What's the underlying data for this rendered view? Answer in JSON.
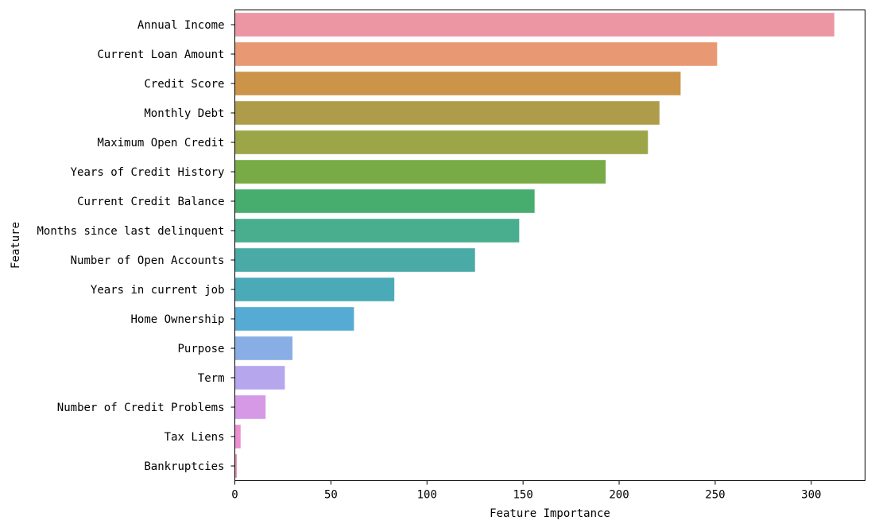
{
  "chart_data": {
    "type": "bar",
    "orientation": "horizontal",
    "xlabel": "Feature Importance",
    "ylabel": "Feature",
    "xlim": [
      0,
      328
    ],
    "xticks": [
      0,
      50,
      100,
      150,
      200,
      250,
      300
    ],
    "grid": false,
    "categories": [
      "Annual Income",
      "Current Loan Amount",
      "Credit Score",
      "Monthly Debt",
      "Maximum Open Credit",
      "Years of Credit History",
      "Current Credit Balance",
      "Months since last delinquent",
      "Number of Open Accounts",
      "Years in current job",
      "Home Ownership",
      "Purpose",
      "Term",
      "Number of Credit Problems",
      "Tax Liens",
      "Bankruptcies"
    ],
    "values": [
      312,
      251,
      232,
      221,
      215,
      193,
      156,
      148,
      125,
      83,
      62,
      30,
      26,
      16,
      3,
      1
    ],
    "colors": [
      "#ec96a3",
      "#e99874",
      "#cb9449",
      "#ae9c4a",
      "#9ca548",
      "#78ab46",
      "#47ad6f",
      "#48ae8d",
      "#4aaaa6",
      "#4baab8",
      "#55abd3",
      "#89aee6",
      "#b6a6ee",
      "#d599e6",
      "#ec8fd2",
      "#e58fa9"
    ]
  }
}
